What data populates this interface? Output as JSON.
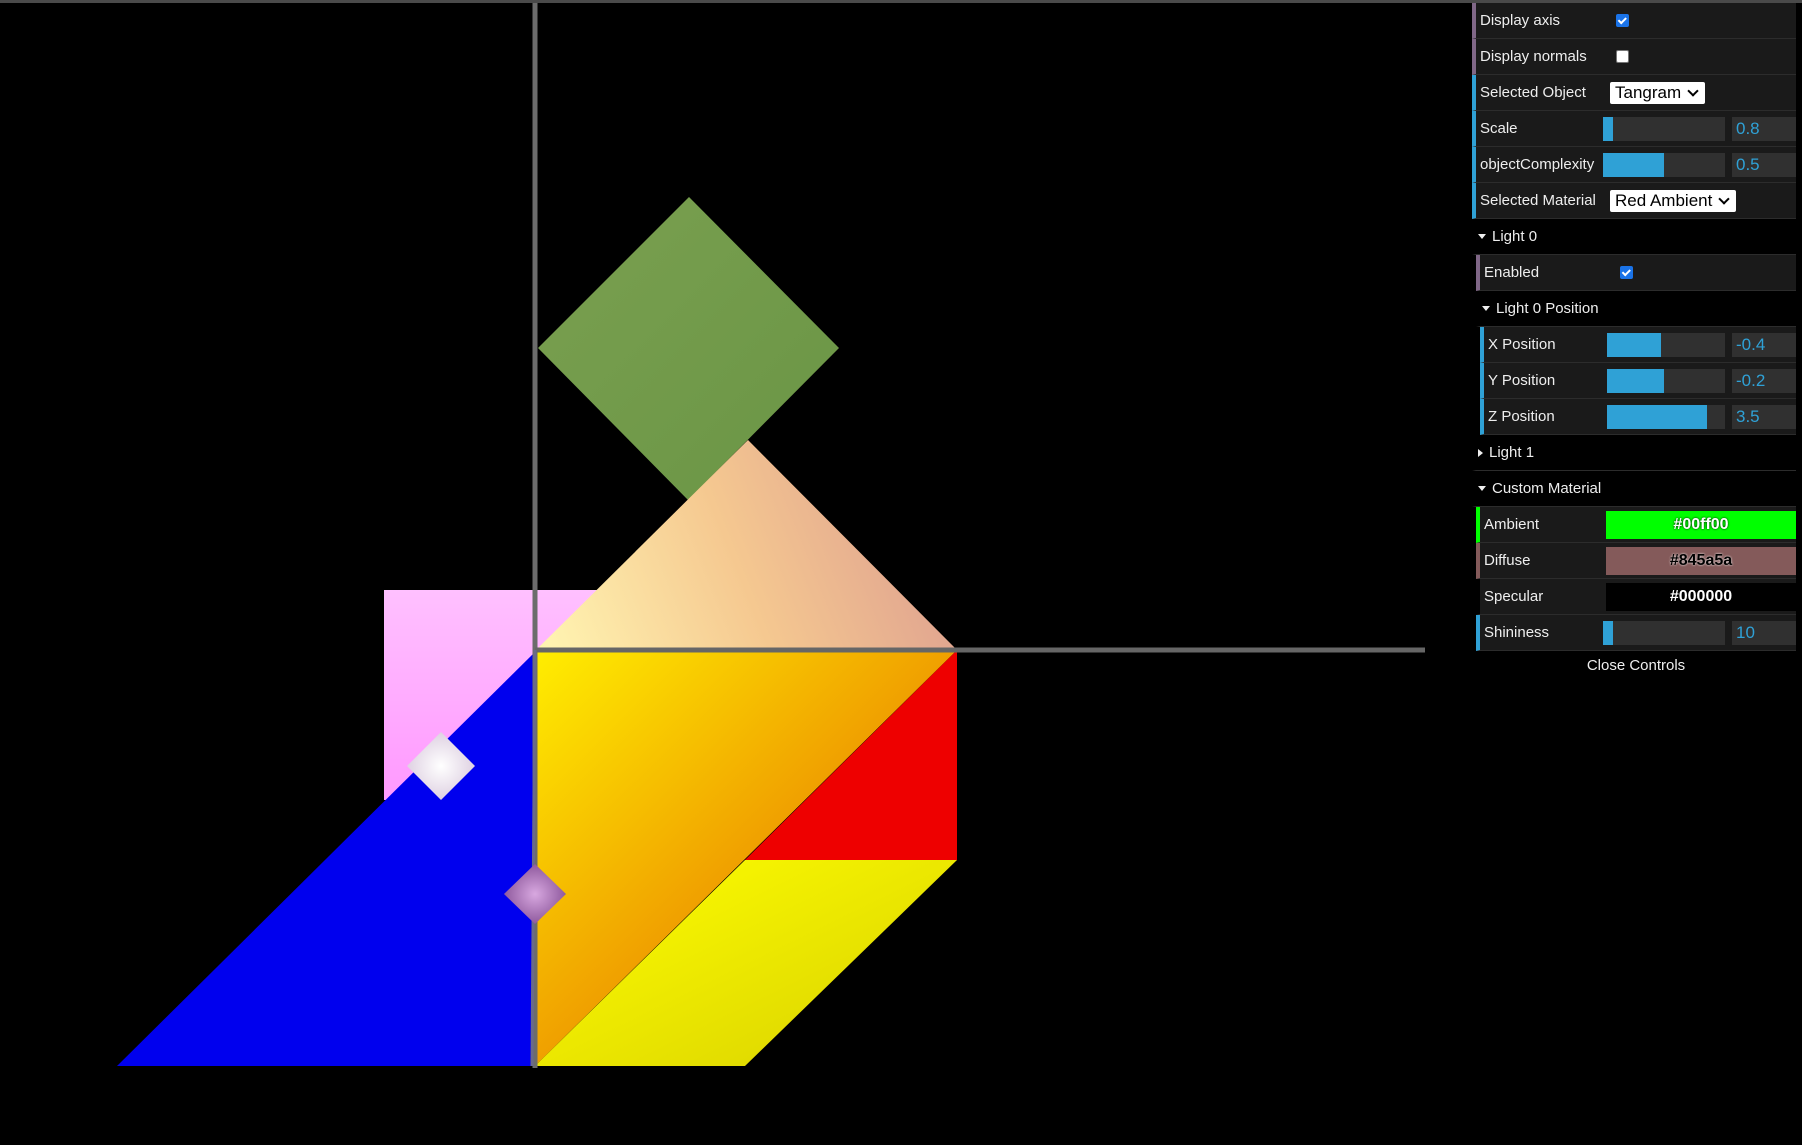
{
  "gui": {
    "display_axis": {
      "label": "Display axis",
      "checked": true
    },
    "display_normals": {
      "label": "Display normals",
      "checked": false
    },
    "selected_object": {
      "label": "Selected Object",
      "value": "Tangram"
    },
    "scale": {
      "label": "Scale",
      "value": "0.8",
      "fraction": 0.08
    },
    "object_complexity": {
      "label": "objectComplexity",
      "value": "0.5",
      "fraction": 0.5
    },
    "selected_material": {
      "label": "Selected Material",
      "value": "Red Ambient"
    },
    "light0": {
      "title": "Light 0",
      "enabled": {
        "label": "Enabled",
        "checked": true
      },
      "position_folder": {
        "title": "Light 0 Position",
        "x": {
          "label": "X Position",
          "value": "-0.4",
          "fraction": 0.46
        },
        "y": {
          "label": "Y Position",
          "value": "-0.2",
          "fraction": 0.48
        },
        "z": {
          "label": "Z Position",
          "value": "3.5",
          "fraction": 0.85
        }
      }
    },
    "light1": {
      "title": "Light 1"
    },
    "custom_material": {
      "title": "Custom Material",
      "ambient": {
        "label": "Ambient",
        "value": "#00ff00",
        "color": "#00ff00"
      },
      "diffuse": {
        "label": "Diffuse",
        "value": "#845a5a",
        "color": "#845a5a"
      },
      "specular": {
        "label": "Specular",
        "value": "#000000",
        "color": "#000000"
      },
      "shininess": {
        "label": "Shininess",
        "value": "10",
        "fraction": 0.08
      }
    },
    "close_label": "Close Controls"
  },
  "colors": {
    "accent": "#2fa1d6",
    "blue_piece": "#0000ee",
    "red_piece": "#ee0000",
    "green_piece": "#6a9a4a",
    "pink_piece": "#ffb3ff",
    "yellow_piece": "#ffee00"
  }
}
